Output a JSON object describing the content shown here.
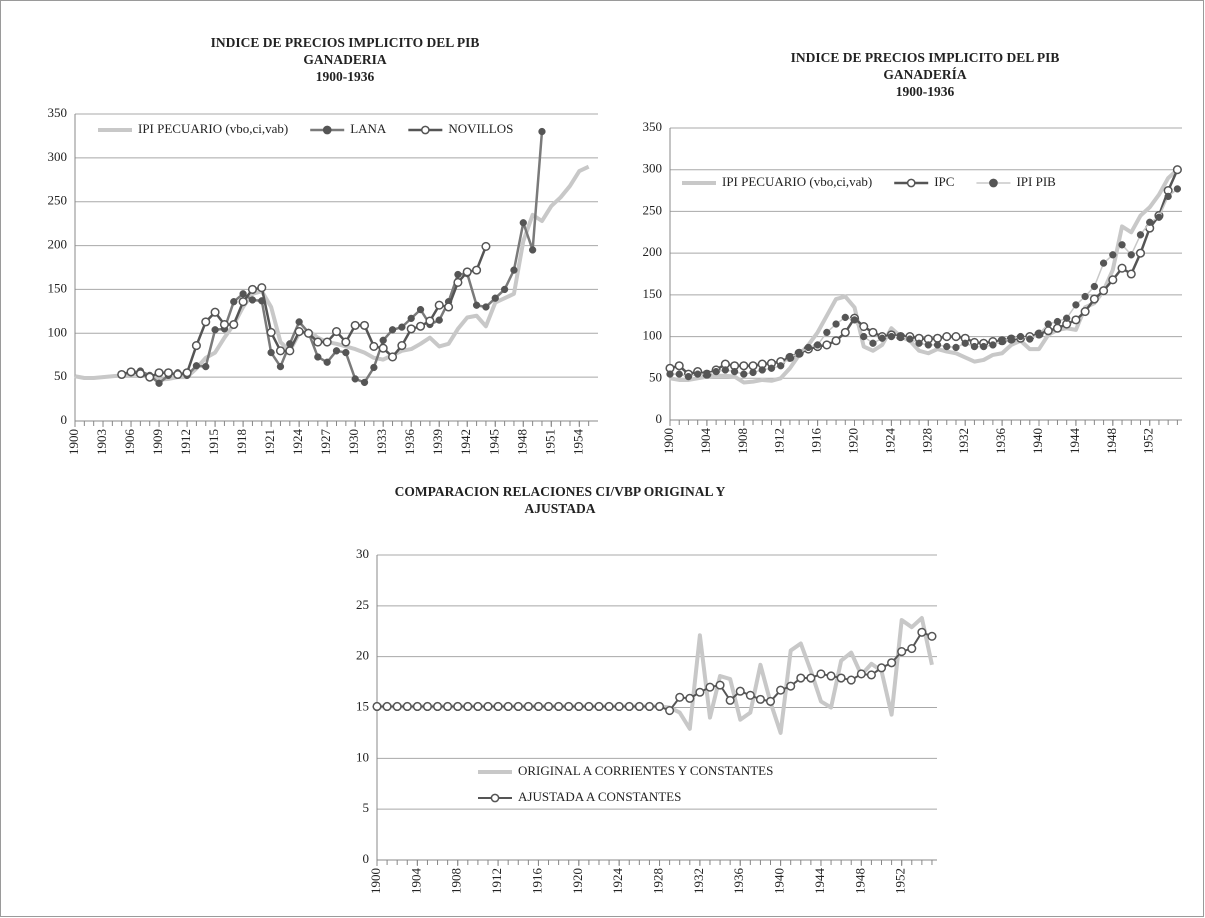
{
  "chart_data": [
    {
      "type": "line",
      "title": [
        "INDICE DE PRECIOS IMPLICITO DEL PIB",
        "GANADERIA",
        "1900-1936"
      ],
      "x": [
        1900,
        1901,
        1902,
        1903,
        1904,
        1905,
        1906,
        1907,
        1908,
        1909,
        1910,
        1911,
        1912,
        1913,
        1914,
        1915,
        1916,
        1917,
        1918,
        1919,
        1920,
        1921,
        1922,
        1923,
        1924,
        1925,
        1926,
        1927,
        1928,
        1929,
        1930,
        1931,
        1932,
        1933,
        1934,
        1935,
        1936,
        1937,
        1938,
        1939,
        1940,
        1941,
        1942,
        1943,
        1944,
        1945,
        1946,
        1947,
        1948,
        1949,
        1950,
        1951,
        1952,
        1953,
        1954,
        1955
      ],
      "xlim": [
        1900,
        1956
      ],
      "xticks": [
        1900,
        1903,
        1906,
        1909,
        1912,
        1915,
        1918,
        1921,
        1924,
        1927,
        1930,
        1933,
        1936,
        1939,
        1942,
        1945,
        1948,
        1951,
        1954
      ],
      "ylim": [
        0,
        350
      ],
      "yticks": [
        0,
        50,
        100,
        150,
        200,
        250,
        300,
        350
      ],
      "grid": true,
      "legend": "upper left",
      "series": [
        {
          "name": "IPI PECUARIO (vbo,ci,vab)",
          "color": "#c8c8c8",
          "line_width": 4,
          "marker": "none",
          "values": [
            51,
            49,
            49,
            50,
            51,
            52,
            53,
            54,
            52,
            47,
            48,
            50,
            50,
            60,
            72,
            78,
            95,
            110,
            130,
            145,
            148,
            130,
            90,
            80,
            100,
            103,
            95,
            90,
            88,
            85,
            82,
            78,
            72,
            70,
            75,
            80,
            82,
            88,
            95,
            85,
            88,
            105,
            118,
            120,
            108,
            135,
            140,
            145,
            205,
            235,
            228,
            245,
            255,
            268,
            285,
            290
          ]
        },
        {
          "name": "LANA",
          "color": "#7a7a7a",
          "line_width": 2.5,
          "marker": "filled",
          "marker_color": "#555555",
          "values": [
            null,
            null,
            null,
            null,
            null,
            null,
            55,
            57,
            52,
            43,
            52,
            55,
            52,
            63,
            62,
            104,
            105,
            136,
            145,
            138,
            137,
            78,
            62,
            88,
            113,
            101,
            73,
            67,
            80,
            78,
            48,
            44,
            61,
            92,
            104,
            107,
            117,
            127,
            110,
            115,
            136,
            167,
            168,
            132,
            130,
            140,
            150,
            172,
            226,
            195,
            330,
            null,
            null,
            null,
            null,
            null
          ]
        },
        {
          "name": "NOVILLOS",
          "color": "#555555",
          "line_width": 2.5,
          "marker": "open",
          "marker_color": "#555555",
          "values": [
            null,
            null,
            null,
            null,
            null,
            53,
            56,
            54,
            50,
            55,
            55,
            53,
            55,
            86,
            113,
            124,
            110,
            110,
            136,
            150,
            152,
            101,
            80,
            80,
            102,
            100,
            90,
            90,
            102,
            90,
            109,
            109,
            85,
            83,
            73,
            86,
            105,
            108,
            114,
            132,
            130,
            158,
            170,
            172,
            199,
            null,
            null,
            null,
            null,
            null,
            null,
            null,
            null,
            null,
            null,
            null
          ]
        }
      ]
    },
    {
      "type": "line",
      "title": [
        "INDICE DE PRECIOS IMPLICITO DEL PIB",
        "GANADERÍA",
        "1900-1936"
      ],
      "x": [
        1900,
        1901,
        1902,
        1903,
        1904,
        1905,
        1906,
        1907,
        1908,
        1909,
        1910,
        1911,
        1912,
        1913,
        1914,
        1915,
        1916,
        1917,
        1918,
        1919,
        1920,
        1921,
        1922,
        1923,
        1924,
        1925,
        1926,
        1927,
        1928,
        1929,
        1930,
        1931,
        1932,
        1933,
        1934,
        1935,
        1936,
        1937,
        1938,
        1939,
        1940,
        1941,
        1942,
        1943,
        1944,
        1945,
        1946,
        1947,
        1948,
        1949,
        1950,
        1951,
        1952,
        1953,
        1954,
        1955
      ],
      "xlim": [
        1900,
        1955.5
      ],
      "xticks": [
        1900,
        1904,
        1908,
        1912,
        1916,
        1920,
        1924,
        1928,
        1932,
        1936,
        1940,
        1944,
        1948,
        1952
      ],
      "ylim": [
        0,
        350
      ],
      "yticks": [
        0,
        50,
        100,
        150,
        200,
        250,
        300,
        350
      ],
      "grid": true,
      "legend": "upper left",
      "series": [
        {
          "name": "IPI PECUARIO (vbo,ci,vab)",
          "color": "#c8c8c8",
          "line_width": 4,
          "marker": "none",
          "values": [
            50,
            48,
            48,
            50,
            52,
            53,
            53,
            52,
            45,
            46,
            48,
            47,
            50,
            62,
            78,
            90,
            105,
            125,
            145,
            148,
            135,
            88,
            83,
            90,
            110,
            100,
            95,
            83,
            80,
            85,
            82,
            80,
            75,
            70,
            72,
            78,
            80,
            90,
            95,
            85,
            85,
            102,
            108,
            110,
            108,
            135,
            140,
            155,
            180,
            232,
            225,
            245,
            255,
            270,
            290,
            300
          ]
        },
        {
          "name": "IPC",
          "color": "#555555",
          "line_width": 2.5,
          "marker": "open",
          "marker_color": "#555555",
          "values": [
            62,
            65,
            55,
            58,
            55,
            60,
            67,
            65,
            65,
            65,
            67,
            68,
            70,
            75,
            80,
            85,
            88,
            90,
            95,
            105,
            122,
            112,
            105,
            100,
            102,
            100,
            100,
            98,
            97,
            98,
            100,
            100,
            98,
            93,
            92,
            94,
            95,
            97,
            98,
            100,
            103,
            107,
            110,
            115,
            120,
            130,
            145,
            155,
            168,
            182,
            175,
            200,
            230,
            245,
            275,
            300
          ]
        },
        {
          "name": "IPI PIB",
          "color": "#c8c8c8",
          "line_width": 1.5,
          "marker": "filled",
          "marker_color": "#555555",
          "values": [
            55,
            55,
            52,
            55,
            55,
            58,
            60,
            58,
            55,
            57,
            60,
            62,
            65,
            75,
            80,
            87,
            90,
            105,
            115,
            123,
            120,
            100,
            92,
            98,
            100,
            100,
            97,
            92,
            90,
            90,
            88,
            87,
            92,
            88,
            88,
            90,
            95,
            97,
            100,
            97,
            103,
            115,
            118,
            122,
            138,
            148,
            160,
            188,
            198,
            210,
            198,
            222,
            237,
            243,
            268,
            277
          ]
        }
      ]
    },
    {
      "type": "line",
      "title": [
        "COMPARACION RELACIONES CI/VBP ORIGINAL Y",
        "AJUSTADA"
      ],
      "x": [
        1900,
        1901,
        1902,
        1903,
        1904,
        1905,
        1906,
        1907,
        1908,
        1909,
        1910,
        1911,
        1912,
        1913,
        1914,
        1915,
        1916,
        1917,
        1918,
        1919,
        1920,
        1921,
        1922,
        1923,
        1924,
        1925,
        1926,
        1927,
        1928,
        1929,
        1930,
        1931,
        1932,
        1933,
        1934,
        1935,
        1936,
        1937,
        1938,
        1939,
        1940,
        1941,
        1942,
        1943,
        1944,
        1945,
        1946,
        1947,
        1948,
        1949,
        1950,
        1951,
        1952,
        1953,
        1954,
        1955
      ],
      "xlim": [
        1900,
        1955.5
      ],
      "xticks": [
        1900,
        1904,
        1908,
        1912,
        1916,
        1920,
        1924,
        1928,
        1932,
        1936,
        1940,
        1944,
        1948,
        1952
      ],
      "ylim": [
        0,
        30
      ],
      "yticks": [
        0,
        5,
        10,
        15,
        20,
        25,
        30
      ],
      "grid": true,
      "legend": "lower center",
      "series": [
        {
          "name": "ORIGINAL A CORRIENTES Y CONSTANTES",
          "color": "#c8c8c8",
          "line_width": 4,
          "marker": "none",
          "values": [
            15.1,
            15.1,
            15.1,
            15.1,
            15.1,
            15.1,
            15.1,
            15.1,
            15.1,
            15.1,
            15.1,
            15.1,
            15.1,
            15.1,
            15.1,
            15.1,
            15.1,
            15.1,
            15.1,
            15.1,
            15.1,
            15.1,
            15.1,
            15.1,
            15.1,
            15.1,
            15.1,
            15.1,
            15.1,
            15.0,
            14.5,
            12.9,
            22.1,
            14.0,
            18.1,
            17.8,
            13.8,
            14.5,
            19.2,
            15.5,
            12.5,
            20.6,
            21.3,
            18.6,
            15.6,
            15.0,
            19.6,
            20.4,
            18.2,
            19.3,
            18.6,
            14.3,
            23.6,
            22.9,
            23.8,
            19.2
          ]
        },
        {
          "name": "AJUSTADA A CONSTANTES",
          "color": "#555555",
          "line_width": 2,
          "marker": "open",
          "marker_color": "#555555",
          "values": [
            15.1,
            15.1,
            15.1,
            15.1,
            15.1,
            15.1,
            15.1,
            15.1,
            15.1,
            15.1,
            15.1,
            15.1,
            15.1,
            15.1,
            15.1,
            15.1,
            15.1,
            15.1,
            15.1,
            15.1,
            15.1,
            15.1,
            15.1,
            15.1,
            15.1,
            15.1,
            15.1,
            15.1,
            15.1,
            14.7,
            16.0,
            15.9,
            16.5,
            17.0,
            17.2,
            15.7,
            16.6,
            16.2,
            15.8,
            15.6,
            16.7,
            17.1,
            17.9,
            17.9,
            18.3,
            18.1,
            17.9,
            17.7,
            18.3,
            18.2,
            18.9,
            19.4,
            20.5,
            20.8,
            22.4,
            22.0
          ]
        }
      ]
    }
  ]
}
